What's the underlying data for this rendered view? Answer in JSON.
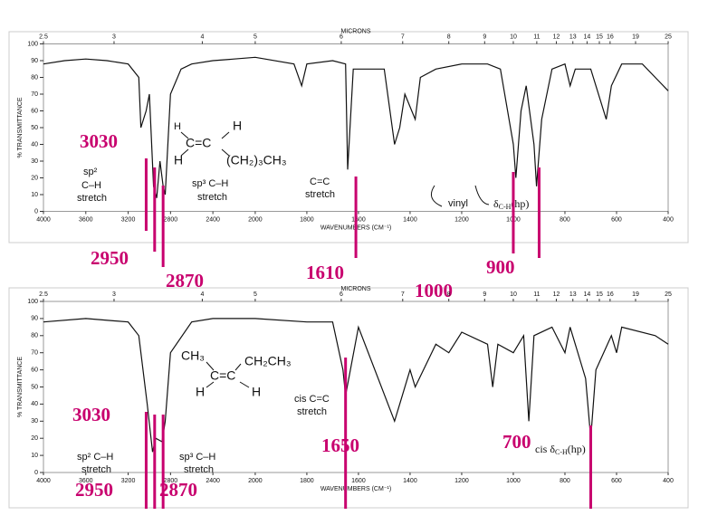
{
  "chart_data": [
    {
      "type": "line",
      "top_axis_label": "MICRONS",
      "x_label": "WAVENUMBERS (CM⁻¹)",
      "y_label": "% TRANSMITTANCE",
      "xlim": [
        4000,
        400
      ],
      "ylim": [
        0,
        100
      ],
      "xticks": [
        4000,
        3600,
        3200,
        2800,
        2400,
        2000,
        1800,
        1600,
        1400,
        1200,
        1000,
        800,
        600,
        400
      ],
      "yticks": [
        0,
        10,
        20,
        30,
        40,
        50,
        60,
        70,
        80,
        90,
        100
      ],
      "top_ticks": [
        2.5,
        3,
        4,
        5,
        6,
        7,
        8,
        9,
        10,
        11,
        12,
        13,
        14,
        15,
        16,
        19,
        25
      ],
      "x": [
        4000,
        3800,
        3600,
        3400,
        3200,
        3100,
        3080,
        3030,
        3000,
        2960,
        2930,
        2900,
        2870,
        2850,
        2800,
        2700,
        2600,
        2400,
        2200,
        2000,
        1850,
        1820,
        1800,
        1700,
        1650,
        1642,
        1620,
        1500,
        1460,
        1440,
        1420,
        1380,
        1360,
        1300,
        1200,
        1100,
        1050,
        1000,
        990,
        970,
        950,
        920,
        910,
        890,
        850,
        800,
        780,
        760,
        700,
        640,
        620,
        580,
        500,
        450,
        400
      ],
      "series": [
        {
          "color": "#111111",
          "values": [
            88,
            90,
            91,
            90,
            88,
            80,
            50,
            60,
            70,
            15,
            8,
            30,
            15,
            10,
            70,
            85,
            88,
            90,
            91,
            92,
            88,
            75,
            88,
            90,
            88,
            25,
            85,
            85,
            40,
            50,
            70,
            55,
            80,
            85,
            88,
            88,
            85,
            40,
            20,
            60,
            75,
            40,
            15,
            55,
            85,
            88,
            75,
            85,
            85,
            55,
            75,
            88,
            88,
            80,
            72
          ]
        }
      ],
      "annotations": [
        {
          "value": 3030
        },
        {
          "value": 2950
        },
        {
          "value": 2870
        },
        {
          "value": 1610
        },
        {
          "value": 1000
        },
        {
          "value": 900
        }
      ],
      "annotation_color": "#c8006e",
      "texts": {
        "sp2": "sp²",
        "ch": "C–H",
        "stretch": "stretch",
        "sp3": "sp³ C–H",
        "stretch2": "stretch",
        "cc": "C=C",
        "stretch3": "stretch",
        "vinyl": "vinyl",
        "delta": "δ",
        "delta_sub": "C-H",
        "delta_hp": "(hp)",
        "h1": "H",
        "h2": "H",
        "c_eq_c": "C=C",
        "h3": "H",
        "chain": "(CH₂)₃CH₃"
      }
    },
    {
      "type": "line",
      "top_axis_label": "MICRONS",
      "x_label": "WAVENUMBERS (CM⁻¹)",
      "y_label": "% TRANSMITTANCE",
      "xlim": [
        4000,
        400
      ],
      "ylim": [
        0,
        100
      ],
      "xticks": [
        4000,
        3600,
        3200,
        2800,
        2400,
        2000,
        1800,
        1600,
        1400,
        1200,
        1000,
        800,
        600,
        400
      ],
      "yticks": [
        0,
        10,
        20,
        30,
        40,
        50,
        60,
        70,
        80,
        90,
        100
      ],
      "top_ticks": [
        2.5,
        3,
        4,
        5,
        6,
        7,
        8,
        9,
        10,
        11,
        12,
        13,
        14,
        15,
        16,
        19,
        25
      ],
      "x": [
        4000,
        3600,
        3200,
        3100,
        3020,
        2970,
        2940,
        2880,
        2850,
        2800,
        2600,
        2400,
        2000,
        1800,
        1700,
        1660,
        1650,
        1600,
        1460,
        1440,
        1400,
        1380,
        1300,
        1250,
        1200,
        1100,
        1080,
        1060,
        1000,
        960,
        940,
        920,
        850,
        800,
        780,
        720,
        700,
        680,
        620,
        600,
        580,
        450,
        400
      ],
      "series": [
        {
          "color": "#111111",
          "values": [
            88,
            90,
            88,
            80,
            40,
            12,
            20,
            18,
            30,
            70,
            88,
            90,
            90,
            88,
            88,
            60,
            45,
            85,
            30,
            40,
            60,
            50,
            75,
            70,
            82,
            75,
            50,
            75,
            70,
            80,
            30,
            80,
            85,
            70,
            85,
            55,
            20,
            60,
            80,
            70,
            85,
            80,
            75
          ]
        }
      ],
      "annotations": [
        {
          "value": 3030
        },
        {
          "value": 2950
        },
        {
          "value": 2870
        },
        {
          "value": 1650
        },
        {
          "value": 700
        }
      ],
      "annotation_color": "#c8006e",
      "texts": {
        "sp2": "sp² C–H",
        "stretch": "stretch",
        "sp3": "sp³ C–H",
        "stretch2": "stretch",
        "cis_cc": "cis C=C",
        "stretch3": "stretch",
        "cis": "cis",
        "delta": "δ",
        "delta_sub": "C-H",
        "delta_hp": "(hp)",
        "ch3": "CH₃",
        "ch2ch3": "CH₂CH₃",
        "c_eq_c": "C=C",
        "h1": "H",
        "h2": "H"
      }
    }
  ]
}
